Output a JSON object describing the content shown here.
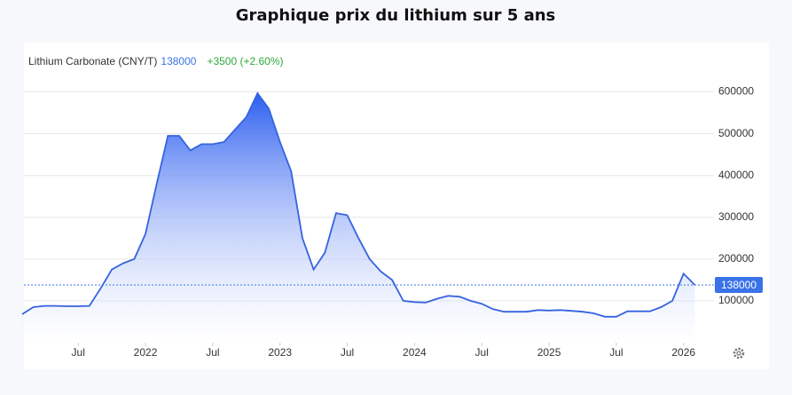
{
  "chart_data": {
    "type": "area",
    "title": "Graphique prix du lithium sur 5 ans",
    "x": [
      "2021-02",
      "2021-03",
      "2021-04",
      "2021-05",
      "2021-06",
      "2021-07",
      "2021-08",
      "2021-09",
      "2021-10",
      "2021-11",
      "2021-12",
      "2022-01",
      "2022-02",
      "2022-03",
      "2022-04",
      "2022-05",
      "2022-06",
      "2022-07",
      "2022-08",
      "2022-09",
      "2022-10",
      "2022-11",
      "2022-12",
      "2023-01",
      "2023-02",
      "2023-03",
      "2023-04",
      "2023-05",
      "2023-06",
      "2023-07",
      "2023-08",
      "2023-09",
      "2023-10",
      "2023-11",
      "2023-12",
      "2024-01",
      "2024-02",
      "2024-03",
      "2024-04",
      "2024-05",
      "2024-06",
      "2024-07",
      "2024-08",
      "2024-09",
      "2024-10",
      "2024-11",
      "2024-12",
      "2025-01",
      "2025-02",
      "2025-03",
      "2025-04",
      "2025-05",
      "2025-06",
      "2025-07",
      "2025-08",
      "2025-09",
      "2025-10",
      "2025-11",
      "2025-12",
      "2026-01",
      "2026-02"
    ],
    "series": [
      {
        "name": "Lithium Carbonate (CNY/T)",
        "color": "#3563e0",
        "values": [
          68000,
          85000,
          88000,
          88000,
          87000,
          87000,
          88000,
          130000,
          175000,
          190000,
          200000,
          260000,
          380000,
          495000,
          495000,
          460000,
          475000,
          475000,
          480000,
          510000,
          540000,
          597000,
          560000,
          480000,
          410000,
          250000,
          175000,
          215000,
          310000,
          305000,
          250000,
          200000,
          170000,
          150000,
          100000,
          97000,
          96000,
          105000,
          112000,
          110000,
          100000,
          93000,
          80000,
          74000,
          74000,
          74000,
          78000,
          77000,
          78000,
          76000,
          74000,
          70000,
          62000,
          62000,
          75000,
          75000,
          75000,
          85000,
          100000,
          165000,
          138000
        ]
      }
    ],
    "current_value": 138000,
    "change_label": "+3500 (+2.60%)",
    "current_color": "#3a72e8",
    "change_color": "#2fa83a",
    "xlim": [
      "2021-02",
      "2026-03"
    ],
    "xticks": [
      {
        "value": "2021-07",
        "label": "Jul"
      },
      {
        "value": "2022-01",
        "label": "2022"
      },
      {
        "value": "2022-07",
        "label": "Jul"
      },
      {
        "value": "2023-01",
        "label": "2023"
      },
      {
        "value": "2023-07",
        "label": "Jul"
      },
      {
        "value": "2024-01",
        "label": "2024"
      },
      {
        "value": "2024-07",
        "label": "Jul"
      },
      {
        "value": "2025-01",
        "label": "2025"
      },
      {
        "value": "2025-07",
        "label": "Jul"
      },
      {
        "value": "2026-01",
        "label": "2026"
      }
    ],
    "ylim": [
      0,
      650000
    ],
    "yticks": [
      100000,
      200000,
      300000,
      400000,
      500000,
      600000
    ],
    "grid": true
  }
}
